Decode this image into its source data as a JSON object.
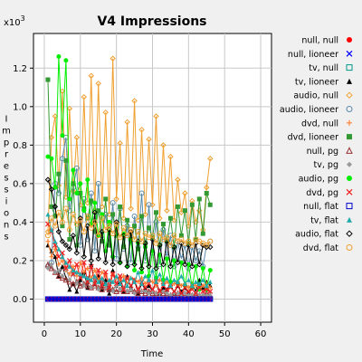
{
  "chart_data": {
    "type": "line",
    "title": "V4 Impressions",
    "xlabel": "Time",
    "ylabel": "Impressions",
    "y_multiplier_label": "x10",
    "y_multiplier_exp": "3",
    "xlim": [
      -3,
      63
    ],
    "ylim": [
      -0.12,
      1.38
    ],
    "x_ticks": [
      0,
      10,
      20,
      30,
      40,
      50,
      60
    ],
    "y_ticks": [
      0.0,
      0.2,
      0.4,
      0.6,
      0.8,
      1.0,
      1.2
    ],
    "x_tick_labels": [
      "0",
      "10",
      "20",
      "30",
      "40",
      "50",
      "60"
    ],
    "y_tick_labels": [
      "0.0",
      "0.2",
      "0.4",
      "0.6",
      "0.8",
      "1.0",
      "1.2"
    ],
    "grid": true,
    "legend_position": "right",
    "x": [
      1,
      2,
      3,
      4,
      5,
      6,
      7,
      8,
      9,
      10,
      11,
      12,
      13,
      14,
      15,
      16,
      17,
      18,
      19,
      20,
      21,
      22,
      23,
      24,
      25,
      26,
      27,
      28,
      29,
      30,
      31,
      32,
      33,
      34,
      35,
      36,
      37,
      38,
      39,
      40,
      41,
      42,
      43,
      44,
      45,
      46
    ],
    "series": [
      {
        "name": "null, null",
        "marker": "dot",
        "color": "#ff0000",
        "values": [
          0,
          0,
          0,
          0,
          0,
          0,
          0,
          0,
          0,
          0,
          0,
          0,
          0,
          0,
          0,
          0,
          0,
          0,
          0,
          0,
          0,
          0,
          0,
          0,
          0,
          0,
          0,
          0,
          0,
          0,
          0,
          0,
          0,
          0,
          0,
          0,
          0,
          0,
          0,
          0,
          0,
          0,
          0,
          0,
          0,
          0
        ]
      },
      {
        "name": "null, lioneer",
        "marker": "x",
        "color": "#0000ff",
        "values": [
          0,
          0,
          0,
          0,
          0,
          0,
          0,
          0,
          0,
          0,
          0,
          0,
          0,
          0,
          0,
          0,
          0,
          0,
          0,
          0,
          0,
          0,
          0,
          0,
          0,
          0,
          0,
          0,
          0,
          0,
          0,
          0,
          0,
          0,
          0,
          0,
          0,
          0,
          0,
          0,
          0,
          0,
          0,
          0,
          0,
          0
        ]
      },
      {
        "name": "tv, null",
        "marker": "square-open",
        "color": "#009988",
        "values": [
          0,
          0,
          0,
          0,
          0,
          0,
          0,
          0,
          0,
          0,
          0,
          0,
          0,
          0,
          0,
          0,
          0,
          0,
          0,
          0,
          0,
          0,
          0,
          0,
          0,
          0,
          0,
          0,
          0,
          0,
          0,
          0,
          0,
          0,
          0,
          0,
          0,
          0,
          0,
          0,
          0,
          0,
          0,
          0,
          0,
          0
        ]
      },
      {
        "name": "tv, lioneer",
        "marker": "triangle",
        "color": "#000000",
        "values": [
          0.28,
          0.25,
          0.22,
          0.12,
          0.17,
          0.11,
          0.05,
          0.08,
          0.04,
          0.1,
          0.14,
          0.06,
          0.18,
          0.08,
          0.12,
          0.05,
          0.1,
          0.03,
          0.15,
          0.07,
          0.09,
          0.04,
          0.12,
          0.06,
          0.1,
          0.03,
          0.08,
          0.05,
          0.07,
          0.04,
          0.09,
          0.03,
          0.06,
          0.05,
          0.08,
          0.03,
          0.07,
          0.04,
          0.06,
          0.03,
          0.08,
          0.04,
          0.1,
          0.06,
          0.09,
          0.07
        ]
      },
      {
        "name": "audio, null",
        "marker": "diamond-open",
        "color": "#f0a030",
        "values": [
          0.35,
          0.84,
          0.95,
          0.59,
          1.08,
          0.53,
          0.99,
          0.56,
          0.84,
          0.49,
          1.05,
          0.5,
          1.16,
          0.46,
          1.12,
          0.48,
          0.97,
          0.44,
          1.25,
          0.52,
          0.81,
          0.42,
          0.92,
          0.47,
          1.03,
          0.41,
          0.88,
          0.44,
          0.83,
          0.49,
          0.95,
          0.42,
          0.8,
          0.46,
          0.74,
          0.41,
          0.62,
          0.45,
          0.55,
          0.38,
          0.51,
          0.4,
          0.46,
          0.36,
          0.58,
          0.73
        ]
      },
      {
        "name": "audio, lioneer",
        "marker": "circle-open",
        "color": "#5a8aa8",
        "values": [
          0.17,
          0.19,
          0.6,
          0.55,
          0.73,
          0.84,
          0.46,
          0.58,
          0.68,
          0.28,
          0.52,
          0.31,
          0.55,
          0.25,
          0.6,
          0.33,
          0.44,
          0.28,
          0.5,
          0.21,
          0.47,
          0.26,
          0.38,
          0.19,
          0.43,
          0.27,
          0.55,
          0.2,
          0.49,
          0.24,
          0.4,
          0.18,
          0.36,
          0.22,
          0.33,
          0.17,
          0.3,
          0.21,
          0.28,
          0.16,
          0.27,
          0.2,
          0.25,
          0.17,
          0.28,
          0.3
        ]
      },
      {
        "name": "dvd, null",
        "marker": "plus",
        "color": "#ff8030",
        "values": [
          0.3,
          0.22,
          0.26,
          0.18,
          0.2,
          0.15,
          0.13,
          0.17,
          0.12,
          0.19,
          0.14,
          0.16,
          0.11,
          0.15,
          0.1,
          0.14,
          0.12,
          0.09,
          0.13,
          0.11,
          0.1,
          0.12,
          0.08,
          0.11,
          0.1,
          0.09,
          0.11,
          0.08,
          0.1,
          0.09,
          0.07,
          0.1,
          0.08,
          0.09,
          0.07,
          0.08,
          0.09,
          0.07,
          0.08,
          0.06,
          0.08,
          0.07,
          0.06,
          0.07,
          0.08,
          0.06
        ]
      },
      {
        "name": "dvd, lioneer",
        "marker": "square",
        "color": "#339933",
        "values": [
          1.14,
          0.48,
          0.43,
          0.65,
          0.38,
          0.72,
          0.31,
          0.6,
          0.28,
          0.55,
          0.47,
          0.42,
          0.51,
          0.35,
          0.46,
          0.3,
          0.52,
          0.28,
          0.44,
          0.33,
          0.48,
          0.27,
          0.41,
          0.31,
          0.38,
          0.26,
          0.43,
          0.29,
          0.37,
          0.32,
          0.45,
          0.28,
          0.39,
          0.3,
          0.42,
          0.27,
          0.48,
          0.33,
          0.46,
          0.29,
          0.49,
          0.31,
          0.52,
          0.34,
          0.55,
          0.49
        ]
      },
      {
        "name": "null, pg",
        "marker": "triangle-open",
        "color": "#993333",
        "values": [
          0.18,
          0.16,
          0.14,
          0.12,
          0.11,
          0.1,
          0.09,
          0.08,
          0.09,
          0.07,
          0.08,
          0.07,
          0.06,
          0.07,
          0.06,
          0.05,
          0.06,
          0.05,
          0.05,
          0.04,
          0.05,
          0.04,
          0.04,
          0.05,
          0.04,
          0.03,
          0.04,
          0.03,
          0.04,
          0.03,
          0.03,
          0.04,
          0.03,
          0.03,
          0.02,
          0.03,
          0.03,
          0.02,
          0.03,
          0.02,
          0.02,
          0.03,
          0.02,
          0.02,
          0.03,
          0.02
        ]
      },
      {
        "name": "tv, pg",
        "marker": "diamond",
        "color": "#999999",
        "values": [
          0.16,
          0.18,
          0.14,
          0.15,
          0.12,
          0.16,
          0.1,
          0.13,
          0.08,
          0.12,
          0.07,
          0.11,
          0.06,
          0.1,
          0.05,
          0.09,
          0.06,
          0.08,
          0.04,
          0.07,
          0.05,
          0.06,
          0.04,
          0.05,
          0.03,
          0.05,
          0.04,
          0.04,
          0.03,
          0.04,
          0.03,
          0.03,
          0.04,
          0.03,
          0.02,
          0.03,
          0.03,
          0.02,
          0.03,
          0.02,
          0.02,
          0.03,
          0.02,
          0.02,
          0.02,
          0.02
        ]
      },
      {
        "name": "audio, pg",
        "marker": "dot",
        "color": "#00ee00",
        "values": [
          0.74,
          0.73,
          0.58,
          1.26,
          0.85,
          1.24,
          0.52,
          0.67,
          0.55,
          0.6,
          0.46,
          0.62,
          0.39,
          0.5,
          0.33,
          0.44,
          0.25,
          0.4,
          0.22,
          0.37,
          0.19,
          0.34,
          0.17,
          0.31,
          0.15,
          0.29,
          0.14,
          0.27,
          0.12,
          0.25,
          0.11,
          0.23,
          0.1,
          0.21,
          0.09,
          0.2,
          0.08,
          0.19,
          0.07,
          0.18,
          0.06,
          0.17,
          0.05,
          0.16,
          0.05,
          0.15
        ]
      },
      {
        "name": "dvd, pg",
        "marker": "x",
        "color": "#ee2222",
        "values": [
          0.39,
          0.35,
          0.28,
          0.22,
          0.24,
          0.16,
          0.2,
          0.13,
          0.18,
          0.11,
          0.19,
          0.09,
          0.17,
          0.08,
          0.15,
          0.07,
          0.14,
          0.06,
          0.13,
          0.08,
          0.12,
          0.05,
          0.11,
          0.07,
          0.1,
          0.05,
          0.09,
          0.06,
          0.08,
          0.05,
          0.09,
          0.04,
          0.07,
          0.05,
          0.06,
          0.04,
          0.07,
          0.03,
          0.06,
          0.04,
          0.05,
          0.03,
          0.06,
          0.04,
          0.05,
          0.04
        ]
      },
      {
        "name": "null, flat",
        "marker": "square-open",
        "color": "#0000cc",
        "values": [
          0,
          0,
          0,
          0,
          0,
          0,
          0,
          0,
          0,
          0,
          0,
          0,
          0,
          0,
          0,
          0,
          0,
          0,
          0,
          0,
          0,
          0,
          0,
          0,
          0,
          0,
          0,
          0,
          0,
          0,
          0,
          0,
          0,
          0,
          0,
          0,
          0,
          0,
          0,
          0,
          0,
          0,
          0,
          0,
          0,
          0
        ]
      },
      {
        "name": "tv, flat",
        "marker": "triangle",
        "color": "#22aaaa",
        "values": [
          0.44,
          0.36,
          0.3,
          0.26,
          0.22,
          0.19,
          0.17,
          0.15,
          0.14,
          0.13,
          0.12,
          0.11,
          0.1,
          0.12,
          0.09,
          0.11,
          0.08,
          0.1,
          0.09,
          0.12,
          0.08,
          0.1,
          0.07,
          0.11,
          0.09,
          0.14,
          0.08,
          0.12,
          0.1,
          0.15,
          0.09,
          0.13,
          0.08,
          0.11,
          0.07,
          0.1,
          0.09,
          0.12,
          0.08,
          0.1,
          0.07,
          0.09,
          0.08,
          0.1,
          0.07,
          0.09
        ]
      },
      {
        "name": "audio, flat",
        "marker": "diamond-open",
        "color": "#000000",
        "values": [
          0.62,
          0.57,
          0.48,
          0.35,
          0.3,
          0.28,
          0.26,
          0.33,
          0.24,
          0.42,
          0.22,
          0.38,
          0.2,
          0.45,
          0.21,
          0.35,
          0.19,
          0.36,
          0.18,
          0.4,
          0.19,
          0.33,
          0.17,
          0.35,
          0.18,
          0.3,
          0.16,
          0.29,
          0.17,
          0.31,
          0.16,
          0.28,
          0.18,
          0.3,
          0.17,
          0.27,
          0.19,
          0.29,
          0.18,
          0.28,
          0.17,
          0.29,
          0.18,
          0.28,
          0.27,
          0.27
        ]
      },
      {
        "name": "dvd, flat",
        "marker": "circle-open",
        "color": "#f0a030",
        "values": [
          0.33,
          0.42,
          0.38,
          0.45,
          0.4,
          0.47,
          0.36,
          0.44,
          0.39,
          0.41,
          0.35,
          0.43,
          0.37,
          0.4,
          0.33,
          0.42,
          0.36,
          0.38,
          0.34,
          0.39,
          0.32,
          0.37,
          0.33,
          0.36,
          0.31,
          0.35,
          0.3,
          0.34,
          0.32,
          0.33,
          0.29,
          0.34,
          0.31,
          0.32,
          0.28,
          0.33,
          0.3,
          0.31,
          0.29,
          0.3,
          0.28,
          0.31,
          0.3,
          0.29,
          0.28,
          0.3
        ]
      }
    ]
  }
}
